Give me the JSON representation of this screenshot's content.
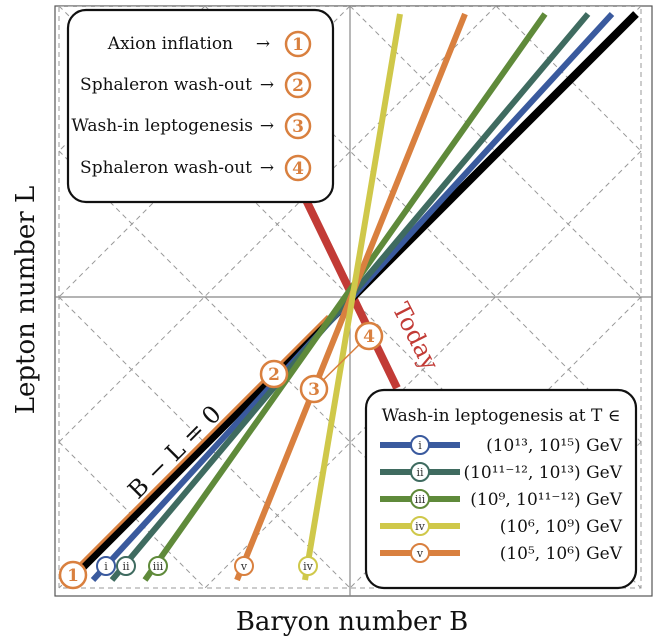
{
  "axes": {
    "xlabel": "Baryon number B",
    "ylabel": "Lepton number L"
  },
  "steps_box": {
    "items": [
      {
        "label": "Axion inflation",
        "arrow": "→",
        "num": "1"
      },
      {
        "label": "Sphaleron wash-out",
        "arrow": "→",
        "num": "2"
      },
      {
        "label": "Wash-in leptogenesis",
        "arrow": "→",
        "num": "3"
      },
      {
        "label": "Sphaleron wash-out",
        "arrow": "→",
        "num": "4"
      }
    ]
  },
  "legend": {
    "title": "Wash-in leptogenesis at T ∈",
    "entries": [
      {
        "id": "i",
        "range": "(10¹³, 10¹⁵) GeV",
        "color": "#3a5a9e"
      },
      {
        "id": "ii",
        "range": "(10¹¹⁻¹², 10¹³) GeV",
        "color": "#3f6b60"
      },
      {
        "id": "iii",
        "range": "(10⁹, 10¹¹⁻¹²) GeV",
        "color": "#5f8a3a"
      },
      {
        "id": "iv",
        "range": "(10⁶, 10⁹) GeV",
        "color": "#cfc84a"
      },
      {
        "id": "v",
        "range": "(10⁵, 10⁶) GeV",
        "color": "#d9803f"
      }
    ]
  },
  "annotations": {
    "b_minus_l": "B − L = 0",
    "today": "Today",
    "marker_1": "1",
    "marker_2": "2",
    "marker_3": "3",
    "marker_4": "4"
  },
  "colors": {
    "orange": "#d9803f",
    "red": "#c23b36",
    "black": "#000000",
    "grid": "#999999"
  }
}
